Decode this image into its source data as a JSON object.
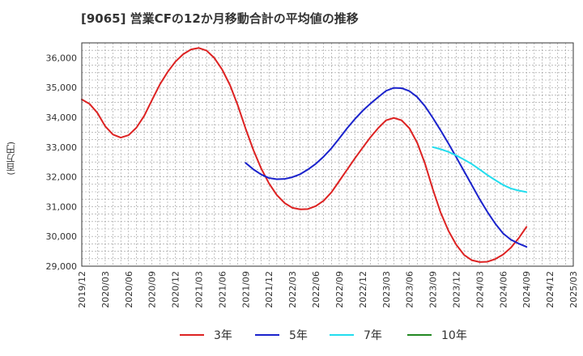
{
  "chart_data": {
    "type": "line",
    "title": "[9065]  営業CFの12か月移動合計の平均値の推移",
    "ylabel": "(百万円)",
    "xlabel": "",
    "ylim": [
      29000,
      36500
    ],
    "yticks": [
      29000,
      30000,
      31000,
      32000,
      33000,
      34000,
      35000,
      36000
    ],
    "ytick_labels": [
      "29,000",
      "30,000",
      "31,000",
      "32,000",
      "33,000",
      "34,000",
      "35,000",
      "36,000"
    ],
    "xticks": [
      "2019/12",
      "2020/03",
      "2020/06",
      "2020/09",
      "2020/12",
      "2021/03",
      "2021/06",
      "2021/09",
      "2021/12",
      "2022/03",
      "2022/06",
      "2022/09",
      "2022/12",
      "2023/03",
      "2023/06",
      "2023/09",
      "2023/12",
      "2024/03",
      "2024/06",
      "2024/09",
      "2024/12",
      "2025/03"
    ],
    "grid": true,
    "legend_position": "bottom",
    "series": [
      {
        "name": "3年",
        "color": "#dd2222",
        "x": [
          "2019/12",
          "2020/01",
          "2020/02",
          "2020/03",
          "2020/04",
          "2020/05",
          "2020/06",
          "2020/07",
          "2020/08",
          "2020/09",
          "2020/10",
          "2020/11",
          "2020/12",
          "2021/01",
          "2021/02",
          "2021/03",
          "2021/04",
          "2021/05",
          "2021/06",
          "2021/07",
          "2021/08",
          "2021/09",
          "2021/10",
          "2021/11",
          "2021/12",
          "2022/01",
          "2022/02",
          "2022/03",
          "2022/04",
          "2022/05",
          "2022/06",
          "2022/07",
          "2022/08",
          "2022/09",
          "2022/10",
          "2022/11",
          "2022/12",
          "2023/01",
          "2023/02",
          "2023/03",
          "2023/04",
          "2023/05",
          "2023/06",
          "2023/07",
          "2023/08",
          "2023/09",
          "2023/10",
          "2023/11",
          "2023/12",
          "2024/01",
          "2024/02",
          "2024/03",
          "2024/04",
          "2024/05",
          "2024/06",
          "2024/07",
          "2024/08",
          "2024/09"
        ],
        "values": [
          34600,
          34450,
          34150,
          33700,
          33420,
          33320,
          33400,
          33650,
          34050,
          34580,
          35100,
          35520,
          35870,
          36120,
          36280,
          36330,
          36240,
          35990,
          35600,
          35080,
          34400,
          33620,
          32900,
          32280,
          31780,
          31390,
          31120,
          30960,
          30910,
          30920,
          31020,
          31200,
          31480,
          31860,
          32240,
          32620,
          32980,
          33330,
          33640,
          33900,
          33980,
          33900,
          33630,
          33140,
          32440,
          31580,
          30800,
          30190,
          29720,
          29380,
          29200,
          29140,
          29150,
          29240,
          29390,
          29620,
          29940,
          30320
        ]
      },
      {
        "name": "5年",
        "color": "#1a22cc",
        "x": [
          "2021/09",
          "2021/10",
          "2021/11",
          "2021/12",
          "2022/01",
          "2022/02",
          "2022/03",
          "2022/04",
          "2022/05",
          "2022/06",
          "2022/07",
          "2022/08",
          "2022/09",
          "2022/10",
          "2022/11",
          "2022/12",
          "2023/01",
          "2023/02",
          "2023/03",
          "2023/04",
          "2023/05",
          "2023/06",
          "2023/07",
          "2023/08",
          "2023/09",
          "2023/10",
          "2023/11",
          "2023/12",
          "2024/01",
          "2024/02",
          "2024/03",
          "2024/04",
          "2024/05",
          "2024/06",
          "2024/07",
          "2024/08",
          "2024/09"
        ],
        "values": [
          32470,
          32250,
          32080,
          31960,
          31920,
          31930,
          31990,
          32090,
          32250,
          32440,
          32680,
          32960,
          33290,
          33630,
          33940,
          34220,
          34460,
          34680,
          34890,
          34990,
          34980,
          34880,
          34680,
          34370,
          33980,
          33560,
          33120,
          32660,
          32190,
          31720,
          31250,
          30820,
          30430,
          30100,
          29890,
          29760,
          29650
        ]
      },
      {
        "name": "7年",
        "color": "#22ddee",
        "x": [
          "2023/09",
          "2023/10",
          "2023/11",
          "2023/12",
          "2024/01",
          "2024/02",
          "2024/03",
          "2024/04",
          "2024/05",
          "2024/06",
          "2024/07",
          "2024/08",
          "2024/09"
        ],
        "values": [
          33000,
          32930,
          32840,
          32720,
          32580,
          32430,
          32250,
          32060,
          31890,
          31730,
          31610,
          31540,
          31490
        ]
      },
      {
        "name": "10年",
        "color": "#228822",
        "x": [],
        "values": []
      }
    ]
  }
}
